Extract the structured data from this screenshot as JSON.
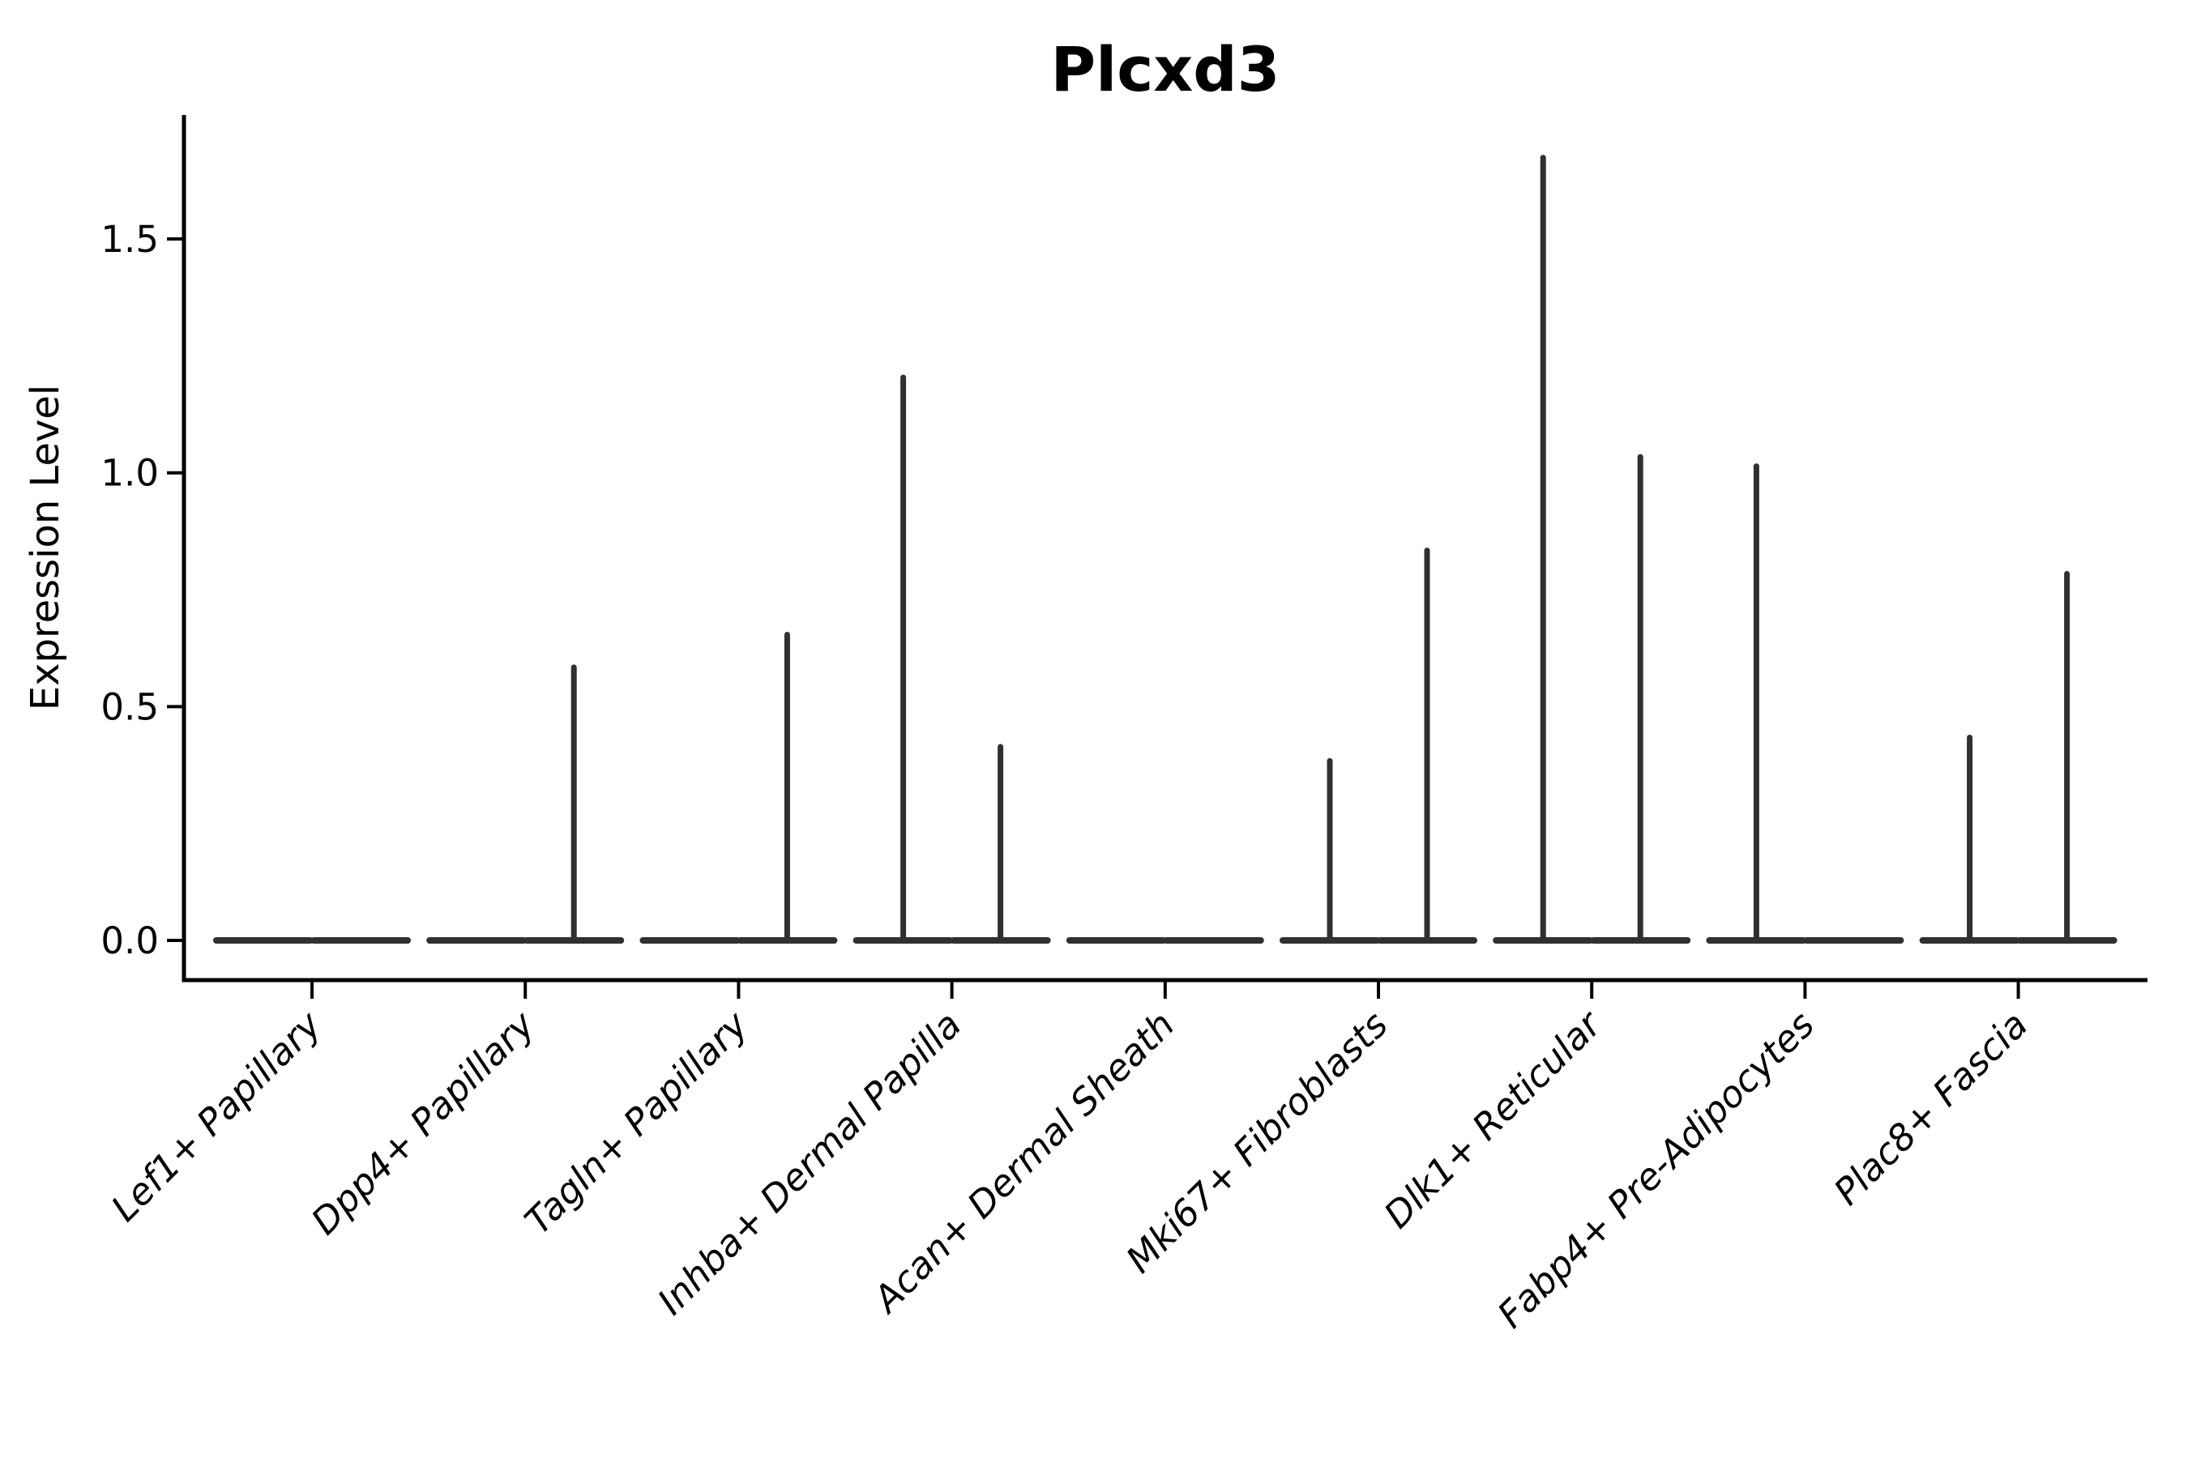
{
  "chart_data": {
    "type": "violin",
    "title": "Plcxd3",
    "ylabel": "Expression Level",
    "xlabel": "",
    "categories": [
      "Lef1+ Papillary",
      "Dpp4+ Papillary",
      "Tagln+ Papillary",
      "Inhba+ Dermal Papilla",
      "Acan+ Dermal Sheath",
      "Mki67+ Fibroblasts",
      "Dlk1+ Reticular",
      "Fabp4+ Pre-Adipocytes",
      "Plac8+ Fascia"
    ],
    "violins_per_category": 2,
    "baseline_value": 0.0,
    "series": [
      {
        "name": "left-violin-max-expression",
        "values": [
          0,
          0,
          0,
          1.21,
          0,
          0.39,
          1.68,
          1.02,
          0.44
        ]
      },
      {
        "name": "right-violin-max-expression",
        "values": [
          0,
          0.59,
          0.66,
          0.42,
          0,
          0.84,
          1.04,
          0,
          0.79
        ]
      }
    ],
    "ytick_labels": [
      "0.0",
      "0.5",
      "1.0",
      "1.5"
    ],
    "ylim": [
      -0.085,
      1.765
    ],
    "grid": false,
    "legend_position": "none",
    "violin_color": "#303030",
    "axis_color": "#000000"
  }
}
